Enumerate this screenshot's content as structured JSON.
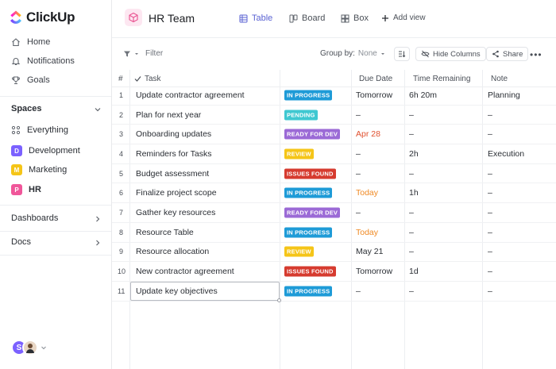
{
  "app": {
    "name": "ClickUp"
  },
  "sidebar": {
    "nav": [
      {
        "label": "Home",
        "icon": "home-icon"
      },
      {
        "label": "Notifications",
        "icon": "bell-icon"
      },
      {
        "label": "Goals",
        "icon": "trophy-icon"
      }
    ],
    "spaces_title": "Spaces",
    "spaces": [
      {
        "label": "Everything",
        "icon": "grid-icon"
      },
      {
        "label": "Development",
        "letter": "D",
        "color": "#7b61ff"
      },
      {
        "label": "Marketing",
        "letter": "M",
        "color": "#f5c518"
      },
      {
        "label": "HR",
        "letter": "P",
        "color": "#f0569a"
      }
    ],
    "dashboards_label": "Dashboards",
    "docs_label": "Docs",
    "avatars": [
      {
        "letter": "S",
        "color": "#7b61ff"
      }
    ]
  },
  "header": {
    "title": "HR Team",
    "views": [
      {
        "label": "Table",
        "icon": "table-icon",
        "active": true
      },
      {
        "label": "Board",
        "icon": "board-icon",
        "active": false
      },
      {
        "label": "Box",
        "icon": "box-icon",
        "active": false
      },
      {
        "label": "Add view",
        "icon": "plus-icon",
        "active": false
      }
    ]
  },
  "toolbar": {
    "filter_label": "Filter",
    "group_by_label": "Group by:",
    "group_by_value": "None",
    "hide_columns_label": "Hide Columns",
    "share_label": "Share"
  },
  "table": {
    "columns": [
      "#",
      "Task",
      "Due Date",
      "Time Remaining",
      "Note"
    ],
    "status_colors": {
      "IN PROGRESS": "#1e9bd7",
      "PENDING": "#3fc8d1",
      "READY FOR DEV": "#9b6ad6",
      "REVIEW": "#f5c518",
      "ISSUES FOUND": "#d63b2f"
    },
    "rows": [
      {
        "n": "1",
        "task": "Update contractor agreement",
        "status": "IN PROGRESS",
        "due": "Tomorrow",
        "due_color": "#2a2e34",
        "remaining": "6h 20m",
        "note": "Planning"
      },
      {
        "n": "2",
        "task": "Plan for next year",
        "status": "PENDING",
        "due": "–",
        "due_color": "#2a2e34",
        "remaining": "–",
        "note": "–"
      },
      {
        "n": "3",
        "task": "Onboarding updates",
        "status": "READY FOR DEV",
        "due": "Apr 28",
        "due_color": "#e0502f",
        "remaining": "–",
        "note": "–"
      },
      {
        "n": "4",
        "task": "Reminders for Tasks",
        "status": "REVIEW",
        "due": "–",
        "due_color": "#2a2e34",
        "remaining": "2h",
        "note": "Execution"
      },
      {
        "n": "5",
        "task": "Budget assessment",
        "status": "ISSUES FOUND",
        "due": "–",
        "due_color": "#2a2e34",
        "remaining": "–",
        "note": "–"
      },
      {
        "n": "6",
        "task": "Finalize project scope",
        "status": "IN PROGRESS",
        "due": "Today",
        "due_color": "#f08a24",
        "remaining": "1h",
        "note": "–"
      },
      {
        "n": "7",
        "task": "Gather key resources",
        "status": "READY FOR DEV",
        "due": "–",
        "due_color": "#2a2e34",
        "remaining": "–",
        "note": "–"
      },
      {
        "n": "8",
        "task": "Resource Table",
        "status": "IN PROGRESS",
        "due": "Today",
        "due_color": "#f08a24",
        "remaining": "–",
        "note": "–"
      },
      {
        "n": "9",
        "task": "Resource allocation",
        "status": "REVIEW",
        "due": "May 21",
        "due_color": "#2a2e34",
        "remaining": "–",
        "note": "–"
      },
      {
        "n": "10",
        "task": "New contractor agreement",
        "status": "ISSUES FOUND",
        "due": "Tomorrow",
        "due_color": "#2a2e34",
        "remaining": "1d",
        "note": "–"
      },
      {
        "n": "11",
        "task": "Update key objectives",
        "status": "IN PROGRESS",
        "due": "–",
        "due_color": "#2a2e34",
        "remaining": "–",
        "note": "–"
      }
    ]
  }
}
